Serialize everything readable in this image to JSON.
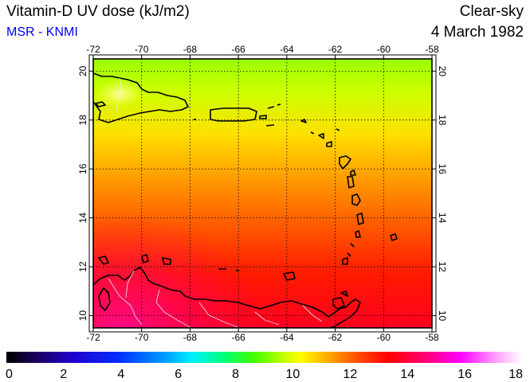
{
  "header": {
    "title": "Vitamin-D UV dose (kJ/m2)",
    "credit": "MSR - KNMI",
    "sky_condition": "Clear-sky",
    "date": "4 March 1982"
  },
  "map": {
    "lon_ticks": [
      "-72",
      "-70",
      "-68",
      "-66",
      "-64",
      "-62",
      "-60",
      "-58"
    ],
    "lat_ticks": [
      "10",
      "12",
      "14",
      "16",
      "18",
      "20"
    ],
    "lon_range": [
      -72,
      -58
    ],
    "lat_range": [
      9.5,
      20.5
    ],
    "grid": true,
    "field_gradient_by_lat": [
      {
        "lat": 20.5,
        "value": 8.0
      },
      {
        "lat": 19.0,
        "value": 9.0
      },
      {
        "lat": 17.0,
        "value": 10.5
      },
      {
        "lat": 15.0,
        "value": 11.5
      },
      {
        "lat": 13.0,
        "value": 12.5
      },
      {
        "lat": 11.0,
        "value": 13.3
      },
      {
        "lat": 9.5,
        "value": 13.6
      }
    ]
  },
  "colorbar": {
    "ticks": [
      "0",
      "2",
      "4",
      "6",
      "8",
      "10",
      "12",
      "14",
      "16",
      "18"
    ],
    "range": [
      0,
      18
    ],
    "colors": [
      "#000000",
      "#3a00a0",
      "#0000ff",
      "#00a0ff",
      "#00ffff",
      "#00ff60",
      "#a0ff00",
      "#ffff00",
      "#ff8000",
      "#ff0000",
      "#ff0080",
      "#ff00ff",
      "#ffb0ff",
      "#ffffff"
    ]
  }
}
